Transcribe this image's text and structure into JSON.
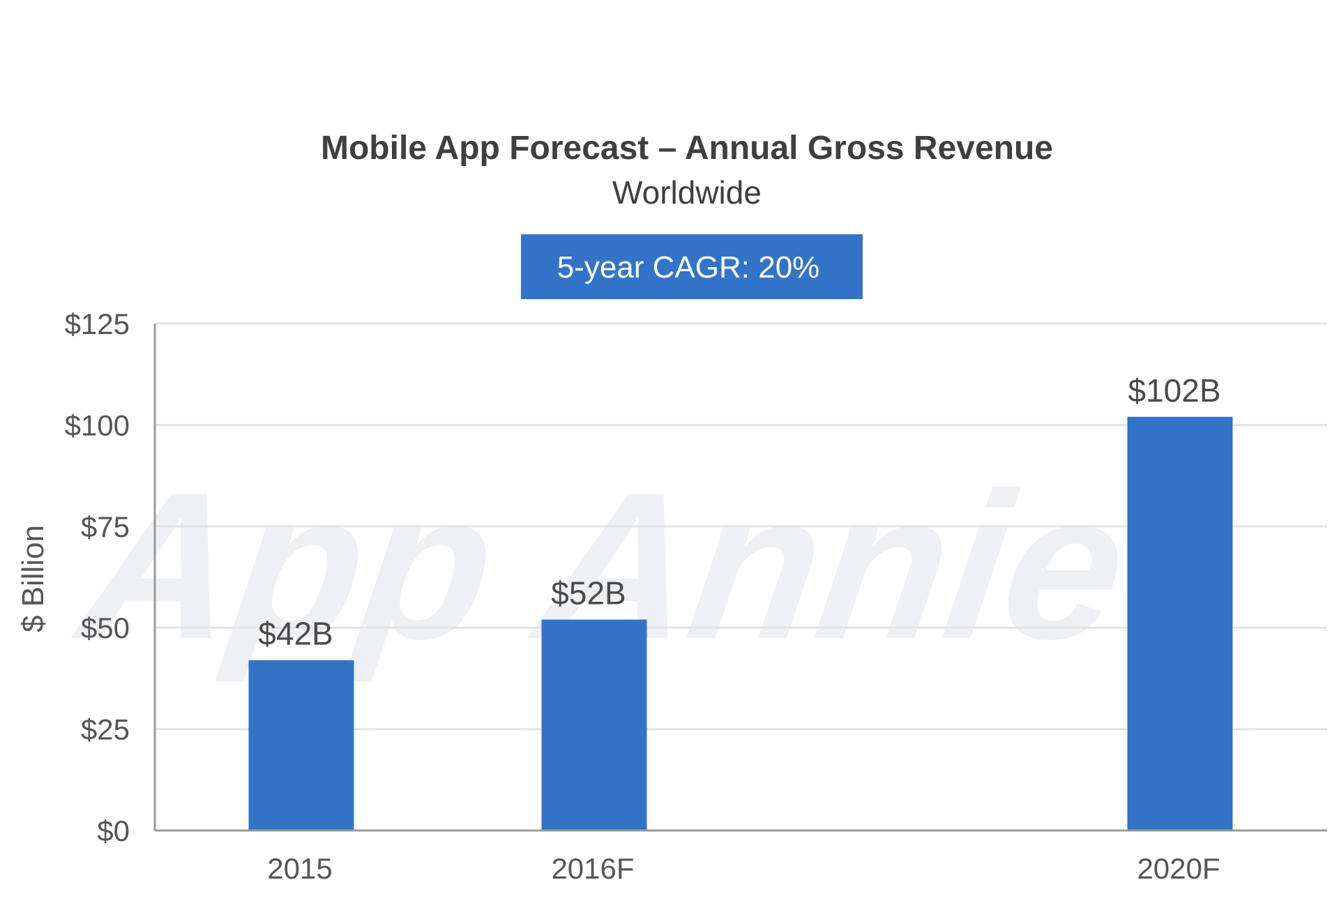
{
  "chart_data": {
    "type": "bar",
    "title": "Mobile App Forecast – Annual Gross Revenue",
    "subtitle": "Worldwide",
    "badge": "5-year CAGR: 20%",
    "watermark": "App Annie",
    "xlabel": "",
    "ylabel": "$ Billion",
    "categories": [
      "2015",
      "2016F",
      "2020F"
    ],
    "x_positions": [
      0,
      1,
      3
    ],
    "values": [
      42,
      52,
      102
    ],
    "data_labels": [
      "$42B",
      "$52B",
      "$102B"
    ],
    "ylim": [
      0,
      125
    ],
    "yticks": [
      0,
      25,
      50,
      75,
      100,
      125
    ],
    "ytick_labels": [
      "$0",
      "$25",
      "$50",
      "$75",
      "$100",
      "$125"
    ],
    "grid": true,
    "legend": "none",
    "colors": {
      "bar": "#3374c9",
      "badge": "#3374c9",
      "grid": "#e3e3e3",
      "axis": "#9a9a9a"
    }
  }
}
